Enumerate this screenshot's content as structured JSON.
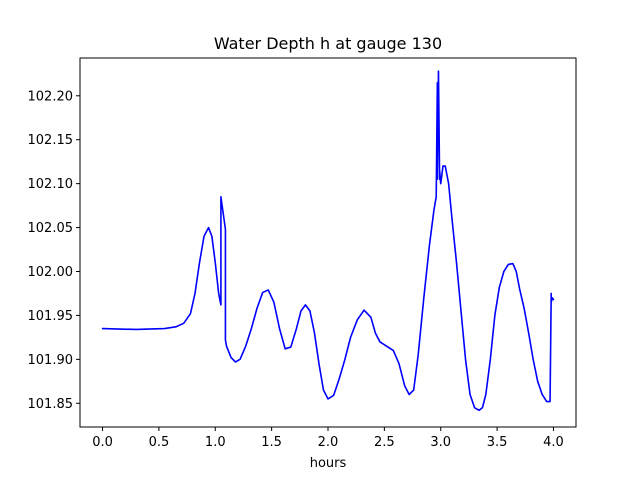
{
  "chart_data": {
    "type": "line",
    "title": "Water Depth h at gauge 130",
    "xlabel": "hours",
    "ylabel": "",
    "xlim": [
      -0.2,
      4.2
    ],
    "ylim": [
      101.823,
      102.243
    ],
    "grid": false,
    "x_ticks": [
      0.0,
      0.5,
      1.0,
      1.5,
      2.0,
      2.5,
      3.0,
      3.5,
      4.0
    ],
    "x_tick_labels": [
      "0.0",
      "0.5",
      "1.0",
      "1.5",
      "2.0",
      "2.5",
      "3.0",
      "3.5",
      "4.0"
    ],
    "y_ticks": [
      101.85,
      101.9,
      101.95,
      102.0,
      102.05,
      102.1,
      102.15,
      102.2
    ],
    "y_tick_labels": [
      "101.85",
      "101.90",
      "101.95",
      "102.00",
      "102.05",
      "102.10",
      "102.15",
      "102.20"
    ],
    "series": [
      {
        "color": "#0000ff",
        "x": [
          0.0,
          0.3,
          0.55,
          0.65,
          0.72,
          0.78,
          0.82,
          0.86,
          0.9,
          0.94,
          0.97,
          1.0,
          1.03,
          1.05,
          1.05,
          1.09,
          1.09,
          1.1,
          1.14,
          1.18,
          1.22,
          1.27,
          1.32,
          1.37,
          1.42,
          1.47,
          1.52,
          1.57,
          1.62,
          1.67,
          1.72,
          1.76,
          1.8,
          1.84,
          1.88,
          1.92,
          1.96,
          2.0,
          2.05,
          2.1,
          2.15,
          2.2,
          2.26,
          2.32,
          2.38,
          2.42,
          2.46,
          2.52,
          2.58,
          2.63,
          2.68,
          2.72,
          2.76,
          2.8,
          2.85,
          2.9,
          2.94,
          2.96,
          2.97,
          2.97,
          2.98,
          2.99,
          2.99,
          3.0,
          3.02,
          3.04,
          3.07,
          3.1,
          3.14,
          3.18,
          3.22,
          3.26,
          3.3,
          3.34,
          3.37,
          3.4,
          3.44,
          3.48,
          3.52,
          3.56,
          3.6,
          3.64,
          3.67,
          3.7,
          3.74,
          3.78,
          3.82,
          3.86,
          3.9,
          3.94,
          3.97,
          3.98,
          3.98,
          3.99,
          4.0
        ],
        "values": [
          101.935,
          101.934,
          101.935,
          101.937,
          101.941,
          101.952,
          101.975,
          102.01,
          102.04,
          102.05,
          102.04,
          102.01,
          101.975,
          101.962,
          102.085,
          102.048,
          101.922,
          101.915,
          101.902,
          101.897,
          101.9,
          101.915,
          101.935,
          101.958,
          101.976,
          101.979,
          101.965,
          101.935,
          101.912,
          101.914,
          101.935,
          101.955,
          101.962,
          101.955,
          101.93,
          101.895,
          101.865,
          101.855,
          101.859,
          101.878,
          101.9,
          101.925,
          101.945,
          101.956,
          101.948,
          101.93,
          101.92,
          101.915,
          101.91,
          101.895,
          101.87,
          101.86,
          101.865,
          101.905,
          101.97,
          102.03,
          102.07,
          102.085,
          102.215,
          102.105,
          102.228,
          102.105,
          102.115,
          102.1,
          102.12,
          102.12,
          102.1,
          102.06,
          102.01,
          101.955,
          101.9,
          101.86,
          101.845,
          101.842,
          101.845,
          101.86,
          101.9,
          101.95,
          101.982,
          102.0,
          102.008,
          102.009,
          102.0,
          101.98,
          101.958,
          101.93,
          101.9,
          101.875,
          101.86,
          101.852,
          101.852,
          101.975,
          101.965,
          101.97,
          101.968
        ]
      }
    ]
  }
}
